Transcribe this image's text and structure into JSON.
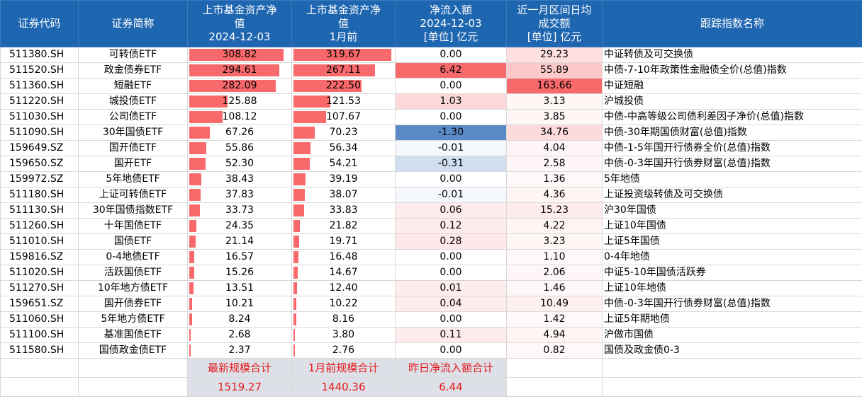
{
  "header": {
    "code": "证券代码",
    "short": "证券简称",
    "aum_now": [
      "上市基金资产净",
      "值",
      "2024-12-03",
      "[单位] 亿元"
    ],
    "aum_prev": [
      "上市基金资产净",
      "值",
      "1月前",
      "[单位] 亿元"
    ],
    "flow": [
      "净流入额",
      "2024-12-03",
      "[单位] 亿元"
    ],
    "turnover": [
      "近一月区间日均",
      "成交额",
      "[单位] 亿元"
    ],
    "index": "跟踪指数名称"
  },
  "colors": {
    "header_bg": "#1f66b0",
    "bar": "#f8696b",
    "inflow_strong": "#f8696b",
    "outflow_strong": "#5a8ac6",
    "summary_bg": "#dde0e7",
    "summary_text": "#e31a1c"
  },
  "rows": [
    {
      "code": "511380.SH",
      "short": "可转债ETF",
      "aum_now": "308.82",
      "aum_prev": "319.67",
      "flow": "0.00",
      "turnover": "29.23",
      "index": "中证转债及可交换债"
    },
    {
      "code": "511520.SH",
      "short": "政金债券ETF",
      "aum_now": "294.61",
      "aum_prev": "267.11",
      "flow": "6.42",
      "turnover": "55.89",
      "index": "中债-7-10年政策性金融债全价(总值)指数"
    },
    {
      "code": "511360.SH",
      "short": "短融ETF",
      "aum_now": "282.09",
      "aum_prev": "222.50",
      "flow": "0.00",
      "turnover": "163.66",
      "index": "中证短融"
    },
    {
      "code": "511220.SH",
      "short": "城投债ETF",
      "aum_now": "125.88",
      "aum_prev": "121.53",
      "flow": "1.03",
      "turnover": "3.13",
      "index": "沪城投债"
    },
    {
      "code": "511030.SH",
      "short": "公司债ETF",
      "aum_now": "108.12",
      "aum_prev": "107.67",
      "flow": "0.00",
      "turnover": "3.85",
      "index": "中债-中高等级公司债利差因子净价(总值)指数"
    },
    {
      "code": "511090.SH",
      "short": "30年国债ETF",
      "aum_now": "67.26",
      "aum_prev": "70.23",
      "flow": "-1.30",
      "turnover": "34.76",
      "index": "中债-30年期国债财富(总值)指数"
    },
    {
      "code": "159649.SZ",
      "short": "国开债ETF",
      "aum_now": "55.86",
      "aum_prev": "56.34",
      "flow": "-0.01",
      "turnover": "4.04",
      "index": "中债-1-5年国开行债券全价(总值)指数"
    },
    {
      "code": "159650.SZ",
      "short": "国开ETF",
      "aum_now": "52.30",
      "aum_prev": "54.21",
      "flow": "-0.31",
      "turnover": "2.58",
      "index": "中债-0-3年国开行债券财富(总值)指数"
    },
    {
      "code": "159972.SZ",
      "short": "5年地债ETF",
      "aum_now": "38.43",
      "aum_prev": "39.19",
      "flow": "0.00",
      "turnover": "1.36",
      "index": "5年地债"
    },
    {
      "code": "511180.SH",
      "short": "上证可转债ETF",
      "aum_now": "37.83",
      "aum_prev": "38.07",
      "flow": "-0.01",
      "turnover": "4.36",
      "index": "上证投资级转债及可交换债"
    },
    {
      "code": "511130.SH",
      "short": "30年国债指数ETF",
      "aum_now": "33.73",
      "aum_prev": "33.83",
      "flow": "0.06",
      "turnover": "15.23",
      "index": "沪30年国债"
    },
    {
      "code": "511260.SH",
      "short": "十年国债ETF",
      "aum_now": "24.35",
      "aum_prev": "21.82",
      "flow": "0.12",
      "turnover": "4.22",
      "index": "上证10年国债"
    },
    {
      "code": "511010.SH",
      "short": "国债ETF",
      "aum_now": "21.14",
      "aum_prev": "19.71",
      "flow": "0.28",
      "turnover": "3.23",
      "index": "上证5年国债"
    },
    {
      "code": "159816.SZ",
      "short": "0-4地债ETF",
      "aum_now": "16.57",
      "aum_prev": "16.48",
      "flow": "0.00",
      "turnover": "1.10",
      "index": "0-4年地债"
    },
    {
      "code": "511020.SH",
      "short": "活跃国债ETF",
      "aum_now": "15.26",
      "aum_prev": "14.67",
      "flow": "0.00",
      "turnover": "2.06",
      "index": "中证5-10年国债活跃券"
    },
    {
      "code": "511270.SH",
      "short": "10年地方债ETF",
      "aum_now": "13.51",
      "aum_prev": "12.40",
      "flow": "0.01",
      "turnover": "1.46",
      "index": "上证10年地债"
    },
    {
      "code": "159651.SZ",
      "short": "国开债券ETF",
      "aum_now": "10.21",
      "aum_prev": "10.22",
      "flow": "0.04",
      "turnover": "10.49",
      "index": "中债-0-3年国开行债券财富(总值)指数"
    },
    {
      "code": "511060.SH",
      "short": "5年地方债ETF",
      "aum_now": "8.24",
      "aum_prev": "8.16",
      "flow": "0.00",
      "turnover": "1.42",
      "index": "上证5年期地债"
    },
    {
      "code": "511100.SH",
      "short": "基准国债ETF",
      "aum_now": "2.68",
      "aum_prev": "3.80",
      "flow": "0.11",
      "turnover": "4.94",
      "index": "沪做市国债"
    },
    {
      "code": "511580.SH",
      "short": "国债政金债ETF",
      "aum_now": "2.37",
      "aum_prev": "2.76",
      "flow": "0.00",
      "turnover": "0.82",
      "index": "国债及政金债0-3"
    }
  ],
  "summary": {
    "labels": [
      "最新规模合计",
      "1月前规模合计",
      "昨日净流入额合计"
    ],
    "values": [
      "1519.27",
      "1440.36",
      "6.44"
    ]
  }
}
